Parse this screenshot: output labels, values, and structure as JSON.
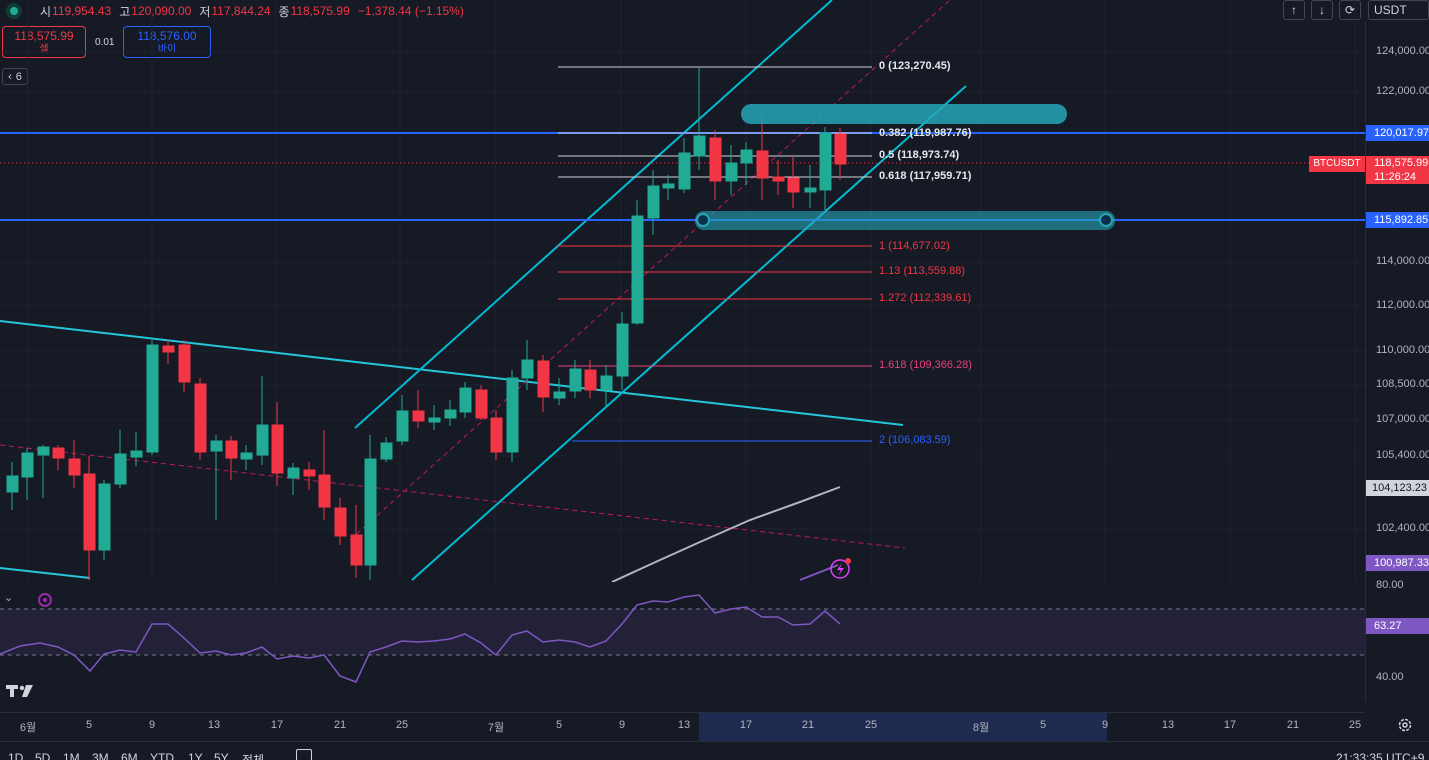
{
  "legend": {
    "open_k": "시",
    "open_v": "119,954.43",
    "high_k": "고",
    "high_v": "120,090.00",
    "low_k": "저",
    "low_v": "117,844.24",
    "close_k": "종",
    "close_v": "118,575.99",
    "change_v": "−1,378.44 (−1.15%)"
  },
  "trade": {
    "sell_price": "118,575.99",
    "sell_label": "셀",
    "spread": "0.01",
    "buy_price": "118,576.00",
    "buy_label": "바이"
  },
  "indicator_count": "6",
  "currency": "USDT",
  "price_axis": {
    "ticks": [
      "124,000.00",
      "122,000.00",
      "114,000.00",
      "112,000.00",
      "110,000.00",
      "108,500.00",
      "107,000.00",
      "105,400.00",
      "102,400.00"
    ],
    "labels": {
      "line_upper": "120,017.97",
      "current": "118,575.99",
      "countdown": "11:26:24",
      "symbol": "BTCUSDT",
      "line_lower": "115,892.85",
      "ma": "104,123.23",
      "bottom": "100,987.33"
    }
  },
  "fib": [
    {
      "label": "0 (123,270.45)"
    },
    {
      "label": "0.382 (119,987.76)"
    },
    {
      "label": "0.5 (118,973.74)"
    },
    {
      "label": "0.618 (117,959.71)"
    },
    {
      "label": "1 (114,677.02)"
    },
    {
      "label": "1.13 (113,559.88)"
    },
    {
      "label": "1.272 (112,339.61)"
    },
    {
      "label": "1.618 (109,366.28)"
    },
    {
      "label": "2 (106,083.59)"
    }
  ],
  "rsi": {
    "ticks": [
      "80.00",
      "40.00"
    ],
    "value": "63.27"
  },
  "time_axis": [
    "6월",
    "5",
    "9",
    "13",
    "17",
    "21",
    "25",
    "7월",
    "5",
    "9",
    "13",
    "17",
    "21",
    "25",
    "8월",
    "5",
    "9",
    "13",
    "17",
    "21",
    "25"
  ],
  "bottom": {
    "ranges": [
      "1D",
      "5D",
      "1M",
      "3M",
      "6M",
      "YTD",
      "1Y",
      "5Y",
      "전체"
    ],
    "clock": "21:33:35 UTC+9"
  },
  "colors": {
    "up": "#22ab94",
    "down": "#f23645",
    "channel": "#00bcd4",
    "hline": "#2962ff",
    "rsi": "#7e57c2",
    "ma": "#b2b5be",
    "background": "#161a25"
  }
}
